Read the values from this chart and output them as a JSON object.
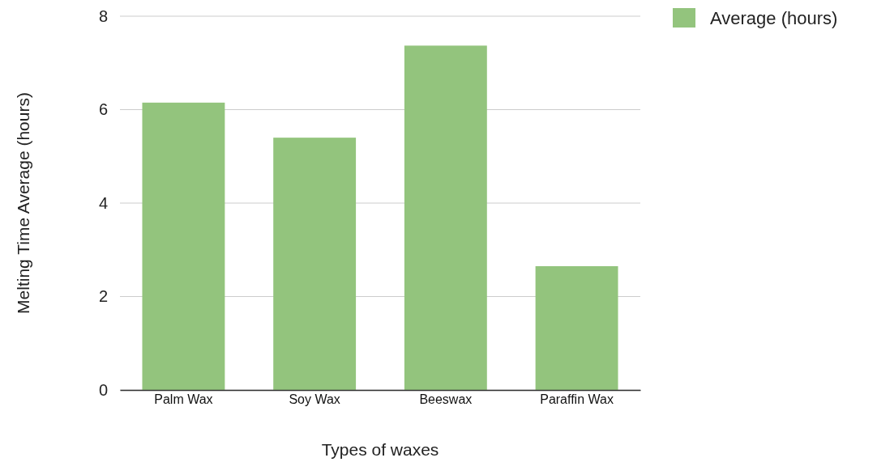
{
  "chart_data": {
    "type": "bar",
    "xlabel": "Types of waxes",
    "ylabel": "Melting Time Average (hours)",
    "categories": [
      "Palm Wax",
      "Soy Wax",
      "Beeswax",
      "Paraffin Wax"
    ],
    "series": [
      {
        "name": "Average (hours)",
        "color": "#93c47d",
        "values": [
          6.15,
          5.4,
          7.37,
          2.65
        ]
      }
    ],
    "ylim": [
      0,
      8
    ],
    "yticks": [
      0,
      2,
      4,
      6,
      8
    ],
    "grid": "y",
    "legend": "top right"
  }
}
